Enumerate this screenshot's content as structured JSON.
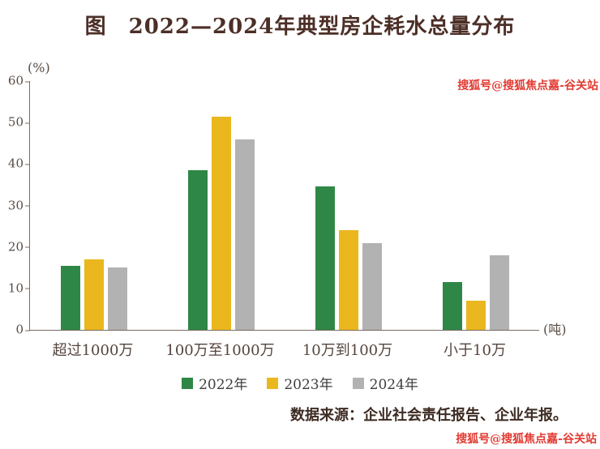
{
  "page": {
    "title": "图　2022—2024年典型房企耗水总量分布",
    "source": "数据来源：企业社会责任报告、企业年报。",
    "watermark_top": "搜狐号@搜狐焦点嘉-谷关站",
    "watermark_bottom": "搜狐号@搜狐焦点嘉-谷关站"
  },
  "chart_data": {
    "type": "bar",
    "title": "图　2022—2024年典型房企耗水总量分布",
    "ylabel": "(%)",
    "x_unit_label": "(吨)",
    "categories": [
      "超过1000万",
      "100万至1000万",
      "10万到100万",
      "小于10万"
    ],
    "series": [
      {
        "name": "2022年",
        "color": "#2f8747",
        "values": [
          15.5,
          38.5,
          34.5,
          11.5
        ]
      },
      {
        "name": "2023年",
        "color": "#eab71f",
        "values": [
          17,
          51.5,
          24,
          7
        ]
      },
      {
        "name": "2024年",
        "color": "#b2b2b2",
        "values": [
          15,
          46,
          21,
          18
        ]
      }
    ],
    "ylim": [
      0,
      60
    ],
    "yticks": [
      0,
      10,
      20,
      30,
      40,
      50,
      60
    ],
    "grid": false,
    "legend_position": "bottom",
    "source": "数据来源：企业社会责任报告、企业年报。"
  }
}
